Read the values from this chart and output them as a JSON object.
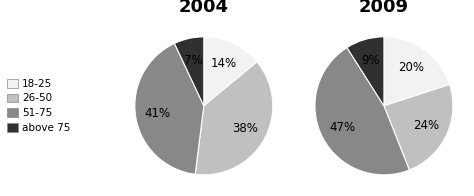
{
  "title_2004": "2004",
  "title_2009": "2009",
  "labels": [
    "18-25",
    "26-50",
    "51-75",
    "above 75"
  ],
  "values_2004": [
    14,
    38,
    41,
    7
  ],
  "values_2009": [
    20,
    24,
    47,
    9
  ],
  "colors": [
    "#f2f2f2",
    "#c0c0c0",
    "#888888",
    "#303030"
  ],
  "label_fontsize": 8.5,
  "title_fontsize": 13,
  "legend_fontsize": 7.5,
  "startangle_2004": 90,
  "startangle_2009": 90,
  "figsize": [
    4.74,
    1.96
  ],
  "dpi": 100
}
